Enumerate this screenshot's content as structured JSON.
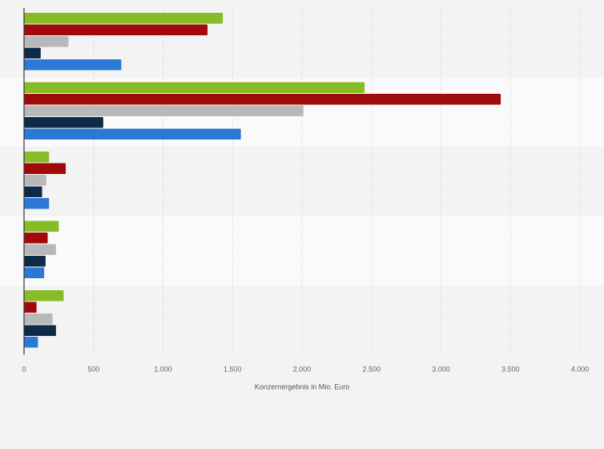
{
  "chart_data": {
    "type": "bar",
    "orientation": "horizontal",
    "xlabel": "Konzernergebnis in Mio. Euro",
    "xlim": [
      0,
      4000
    ],
    "xticks": [
      0,
      500,
      1000,
      1500,
      2000,
      2500,
      3000,
      3500,
      4000
    ],
    "xtick_labels": [
      "0",
      "500",
      "1.000",
      "1.500",
      "2.000",
      "2.500",
      "3.000",
      "3.500",
      "4.000"
    ],
    "grid": true,
    "legend": "none",
    "group_count": 5,
    "series": [
      {
        "color": "#86bc25",
        "values": [
          1430,
          2450,
          180,
          250,
          285
        ]
      },
      {
        "color": "#a10a0a",
        "values": [
          1320,
          3430,
          300,
          170,
          90
        ]
      },
      {
        "color": "#b8b8b8",
        "values": [
          320,
          2010,
          160,
          230,
          205
        ]
      },
      {
        "color": "#0e2a47",
        "values": [
          120,
          570,
          130,
          155,
          230
        ]
      },
      {
        "color": "#2a7ad5",
        "values": [
          700,
          1560,
          180,
          145,
          100
        ]
      }
    ]
  }
}
